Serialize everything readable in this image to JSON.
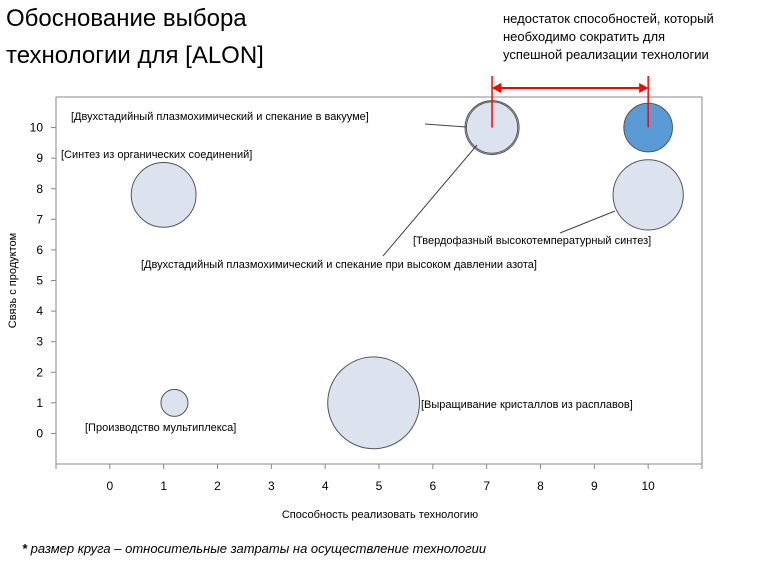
{
  "title": {
    "line1": "Обоснование выбора",
    "line2": "технологии для [ALON]"
  },
  "gap_note": {
    "line1": "недостаток способностей, который",
    "line2": "необходимо сократить для",
    "line3": "успешной реализации технологии"
  },
  "footnote": {
    "mark": "*",
    "text": " размер круга – относительные затраты на осуществление технологии"
  },
  "colors": {
    "bubble_fill": "#dce3ee",
    "bubble_stroke": "#555555",
    "target_fill": "#5b9bd5",
    "arrow": "#ff0000",
    "axis": "#888888"
  },
  "chart_data": {
    "type": "bubble",
    "xlabel": "Способность реализовать технологию",
    "ylabel": "Связь с продуктом",
    "xlim": [
      -1,
      11
    ],
    "ylim": [
      -1,
      11
    ],
    "x_ticks": [
      0,
      1,
      2,
      3,
      4,
      5,
      6,
      7,
      8,
      9,
      10
    ],
    "y_ticks": [
      0,
      1,
      2,
      3,
      4,
      5,
      6,
      7,
      8,
      9,
      10
    ],
    "grid": false,
    "points": [
      {
        "label": "[Двухстадийный плазмохимический и спекание в вакууме]",
        "x": 7.1,
        "y": 10.0,
        "size": 1.0
      },
      {
        "label": "[Синтез из органических соединений]",
        "x": 1.0,
        "y": 7.8,
        "size": 1.2
      },
      {
        "label": "[Твердофазный высокотемпературный синтез]",
        "x": 10.0,
        "y": 7.8,
        "size": 1.3
      },
      {
        "label": "[Двухстадийный плазмохимический и спекание при высоком давлении азота]",
        "x": 7.1,
        "y": 10.0,
        "size": 0.95
      },
      {
        "label": "[Выращивание кристаллов из расплавов]",
        "x": 4.9,
        "y": 1.0,
        "size": 1.7
      },
      {
        "label": "[Производство мультиплекса]",
        "x": 1.2,
        "y": 1.0,
        "size": 0.5
      },
      {
        "label": "",
        "x": 10.0,
        "y": 10.0,
        "size": 0.9,
        "highlight": true
      }
    ],
    "annotation": {
      "from_x": 7.1,
      "to_x": 10.0,
      "meaning": "gap"
    }
  }
}
